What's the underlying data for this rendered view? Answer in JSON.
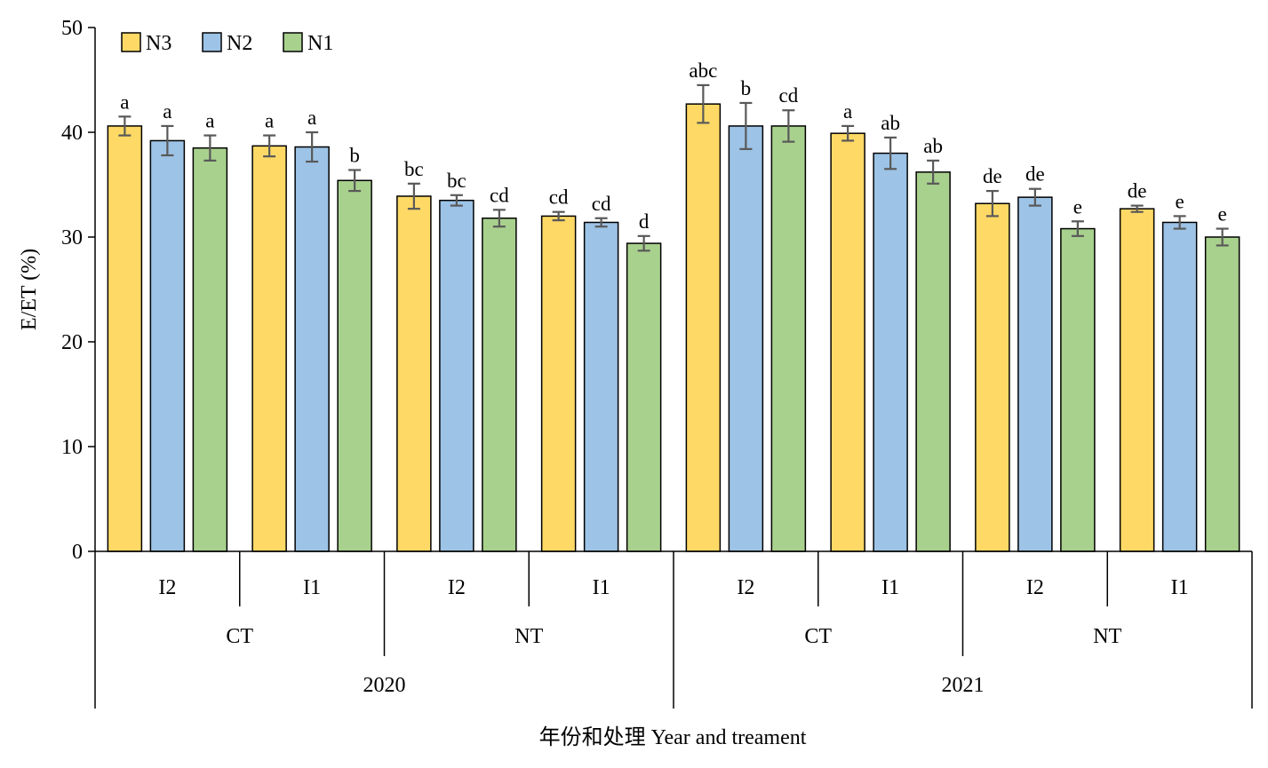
{
  "chart_data": {
    "type": "bar",
    "ylabel": "E/ET (%)",
    "xlabel": "年份和处理 Year and treament",
    "ylim": [
      0,
      50
    ],
    "yticks": [
      0,
      10,
      20,
      30,
      40,
      50
    ],
    "legend_position": "top-left",
    "series": [
      {
        "name": "N3",
        "color": "#ffd966",
        "values": [
          40.6,
          38.7,
          33.9,
          32.0,
          42.7,
          39.9,
          33.2,
          32.7
        ],
        "errors": [
          0.9,
          1.0,
          1.2,
          0.4,
          1.8,
          0.7,
          1.2,
          0.3
        ],
        "labels": [
          "a",
          "a",
          "bc",
          "cd",
          "abc",
          "a",
          "de",
          "de"
        ]
      },
      {
        "name": "N2",
        "color": "#9dc3e6",
        "values": [
          39.2,
          38.6,
          33.5,
          31.4,
          40.6,
          38.0,
          33.8,
          31.4
        ],
        "errors": [
          1.4,
          1.4,
          0.5,
          0.4,
          2.2,
          1.5,
          0.8,
          0.6
        ],
        "labels": [
          "a",
          "a",
          "bc",
          "cd",
          "b",
          "ab",
          "de",
          "e"
        ]
      },
      {
        "name": "N1",
        "color": "#a9d18e",
        "values": [
          38.5,
          35.4,
          31.8,
          29.4,
          40.6,
          36.2,
          30.8,
          30.0
        ],
        "errors": [
          1.2,
          1.0,
          0.8,
          0.7,
          1.5,
          1.1,
          0.7,
          0.8
        ],
        "labels": [
          "a",
          "b",
          "cd",
          "d",
          "cd",
          "ab",
          "e",
          "e"
        ]
      }
    ],
    "categories": [
      "I2",
      "I1",
      "I2",
      "I1",
      "I2",
      "I1",
      "I2",
      "I1"
    ],
    "tillage_groups": [
      "CT",
      "NT",
      "CT",
      "NT"
    ],
    "year_groups": [
      "2020",
      "2021"
    ]
  }
}
